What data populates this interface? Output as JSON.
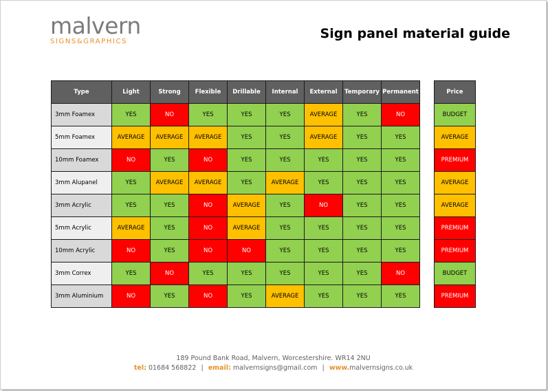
{
  "logo": {
    "main": "malvern",
    "sub": "SIGNS&GRAPHICS"
  },
  "title": "Sign panel material guide",
  "table": {
    "headers": [
      "Type",
      "Light",
      "Strong",
      "Flexible",
      "Drillable",
      "Internal",
      "External",
      "Temporary",
      "Permanent"
    ],
    "price_header": "Price",
    "rows": [
      {
        "type": "3mm Foamex",
        "values": [
          "YES",
          "NO",
          "YES",
          "YES",
          "YES",
          "AVERAGE",
          "YES",
          "NO"
        ],
        "price": "BUDGET"
      },
      {
        "type": "5mm Foamex",
        "values": [
          "AVERAGE",
          "AVERAGE",
          "AVERAGE",
          "YES",
          "YES",
          "AVERAGE",
          "YES",
          "YES"
        ],
        "price": "AVERAGE"
      },
      {
        "type": "10mm Foamex",
        "values": [
          "NO",
          "YES",
          "NO",
          "YES",
          "YES",
          "YES",
          "YES",
          "YES"
        ],
        "price": "PREMIUM"
      },
      {
        "type": "3mm Alupanel",
        "values": [
          "YES",
          "AVERAGE",
          "AVERAGE",
          "YES",
          "AVERAGE",
          "YES",
          "YES",
          "YES"
        ],
        "price": "AVERAGE"
      },
      {
        "type": "3mm Acrylic",
        "values": [
          "YES",
          "YES",
          "NO",
          "AVERAGE",
          "YES",
          "NO",
          "YES",
          "YES"
        ],
        "price": "AVERAGE"
      },
      {
        "type": "5mm Acrylic",
        "values": [
          "AVERAGE",
          "YES",
          "NO",
          "AVERAGE",
          "YES",
          "YES",
          "YES",
          "YES"
        ],
        "price": "PREMIUM"
      },
      {
        "type": "10mm Acrylic",
        "values": [
          "NO",
          "YES",
          "NO",
          "NO",
          "YES",
          "YES",
          "YES",
          "YES"
        ],
        "price": "PREMIUM"
      },
      {
        "type": "3mm Correx",
        "values": [
          "YES",
          "NO",
          "YES",
          "YES",
          "YES",
          "YES",
          "YES",
          "NO"
        ],
        "price": "BUDGET"
      },
      {
        "type": "3mm Aluminium",
        "values": [
          "NO",
          "YES",
          "NO",
          "YES",
          "AVERAGE",
          "YES",
          "YES",
          "YES"
        ],
        "price": "PREMIUM"
      }
    ]
  },
  "colors": {
    "yes": "#92d050",
    "no": "#ff0000",
    "average": "#ffc000",
    "header": "#606060",
    "accent": "#e8902a"
  },
  "footer": {
    "address": "189 Pound Bank Road, Malvern, Worcestershire. WR14 2NU",
    "tel_label": "tel:",
    "tel": "01684 568822",
    "email_label": "email:",
    "email": "malvernsigns@gmail.com",
    "web_label": "www.",
    "web": "malvernsigns.co.uk",
    "separator": "|"
  }
}
